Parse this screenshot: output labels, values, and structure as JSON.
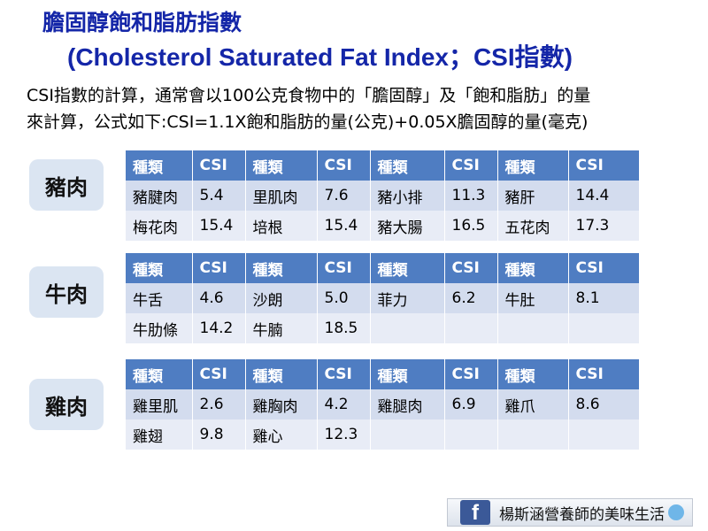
{
  "title": {
    "zh": "膽固醇飽和脂肪指數",
    "en": "(Cholesterol Saturated Fat Index；CSI指數)"
  },
  "intro": {
    "line1": "CSI指數的計算，通常會以100公克食物中的「膽固醇」及「飽和脂肪」的量",
    "line2": "來計算，公式如下:CSI=1.1X飽和脂肪的量(公克)+0.05X膽固醇的量(毫克)"
  },
  "headers": [
    "種類",
    "CSI",
    "種類",
    "CSI",
    "種類",
    "CSI",
    "種類",
    "CSI"
  ],
  "sections": [
    {
      "label": "豬肉",
      "rows": [
        [
          "豬腱肉",
          "5.4",
          "里肌肉",
          "7.6",
          "豬小排",
          "11.3",
          "豬肝",
          "14.4"
        ],
        [
          "梅花肉",
          "15.4",
          "培根",
          "15.4",
          "豬大腸",
          "16.5",
          "五花肉",
          "17.3"
        ]
      ]
    },
    {
      "label": "牛肉",
      "rows": [
        [
          "牛舌",
          "4.6",
          "沙朗",
          "5.0",
          "菲力",
          "6.2",
          "牛肚",
          "8.1"
        ],
        [
          "牛肋條",
          "14.2",
          "牛腩",
          "18.5",
          "",
          "",
          "",
          ""
        ]
      ]
    },
    {
      "label": "雞肉",
      "rows": [
        [
          "雞里肌",
          "2.6",
          "雞胸肉",
          "4.2",
          "雞腿肉",
          "6.9",
          "雞爪",
          "8.6"
        ],
        [
          "雞翅",
          "9.8",
          "雞心",
          "12.3",
          "",
          "",
          "",
          ""
        ]
      ]
    }
  ],
  "banner": {
    "icon": "facebook-icon",
    "icon_glyph": "f",
    "text": "楊斯涵營養師的美味生活"
  },
  "colors": {
    "title": "#1426a8",
    "header_bg": "#4f7dc2",
    "row1_bg": "#d3dcee",
    "row2_bg": "#e8ecf6",
    "label_bg": "#dbe5f2"
  }
}
